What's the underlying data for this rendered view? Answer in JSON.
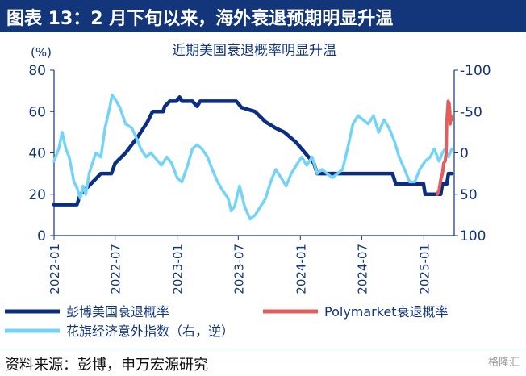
{
  "figure": {
    "title": "图表 13：2 月下旬以来，海外衰退预期明显升温",
    "source": "资料来源：彭博，申万宏源研究",
    "watermark": "格隆汇"
  },
  "colors": {
    "header_bg": "#13357a",
    "axis": "#13357a",
    "recession": "#0b2e83",
    "polymarket": "#e35d5d",
    "surprise": "#73d4f8"
  },
  "chart_data": {
    "type": "line",
    "title": "近期美国衰退概率明显升温",
    "y_unit": "(%)",
    "x_ticks": [
      "2022-01",
      "2022-07",
      "2023-01",
      "2023-07",
      "2024-01",
      "2024-07",
      "2025-01"
    ],
    "x_range": [
      "2022-01-01",
      "2025-04-01"
    ],
    "y_left": {
      "range": [
        0,
        80
      ],
      "ticks": [
        0,
        20,
        40,
        60,
        80
      ]
    },
    "y_right": {
      "range": [
        100,
        -100
      ],
      "inverted": true,
      "ticks": [
        "-100",
        "-50",
        "0",
        "50",
        "100"
      ]
    },
    "legend": [
      {
        "label": "彭博美国衰退概率",
        "series": "recession"
      },
      {
        "label": "Polymarket衰退概率",
        "series": "polymarket"
      },
      {
        "label": "花旗经济意外指数（右，逆）",
        "series": "surprise"
      }
    ],
    "series": [
      {
        "id": "recession",
        "name": "彭博美国衰退概率",
        "axis": "left",
        "points": [
          [
            "2022-01-01",
            15
          ],
          [
            "2022-03-10",
            15
          ],
          [
            "2022-03-20",
            20
          ],
          [
            "2022-04-20",
            25
          ],
          [
            "2022-05-20",
            30
          ],
          [
            "2022-06-20",
            30
          ],
          [
            "2022-07-01",
            35
          ],
          [
            "2022-08-01",
            40
          ],
          [
            "2022-09-05",
            47.5
          ],
          [
            "2022-10-05",
            55
          ],
          [
            "2022-10-20",
            60
          ],
          [
            "2022-11-20",
            60
          ],
          [
            "2022-11-25",
            62.5
          ],
          [
            "2022-12-10",
            65
          ],
          [
            "2022-12-30",
            65
          ],
          [
            "2023-01-08",
            67
          ],
          [
            "2023-01-15",
            65
          ],
          [
            "2023-02-15",
            65
          ],
          [
            "2023-03-01",
            62.5
          ],
          [
            "2023-03-10",
            65
          ],
          [
            "2023-06-25",
            65
          ],
          [
            "2023-07-01",
            64
          ],
          [
            "2023-07-10",
            62
          ],
          [
            "2023-08-20",
            60
          ],
          [
            "2023-09-20",
            55
          ],
          [
            "2023-10-20",
            52
          ],
          [
            "2023-11-15",
            50
          ],
          [
            "2023-12-20",
            45
          ],
          [
            "2024-01-15",
            40
          ],
          [
            "2024-02-10",
            35
          ],
          [
            "2024-02-20",
            30
          ],
          [
            "2024-09-30",
            30
          ],
          [
            "2024-10-10",
            25
          ],
          [
            "2024-12-31",
            25
          ],
          [
            "2025-01-05",
            20
          ],
          [
            "2025-02-20",
            20
          ],
          [
            "2025-02-25",
            25
          ],
          [
            "2025-03-10",
            25
          ],
          [
            "2025-03-15",
            30
          ],
          [
            "2025-03-25",
            30
          ]
        ]
      },
      {
        "id": "surprise",
        "name": "花旗经济意外指数（右，逆）",
        "axis": "right",
        "points": [
          [
            "2022-01-01",
            10
          ],
          [
            "2022-01-15",
            -5
          ],
          [
            "2022-01-25",
            -25
          ],
          [
            "2022-02-05",
            -5
          ],
          [
            "2022-02-15",
            5
          ],
          [
            "2022-03-01",
            35
          ],
          [
            "2022-03-10",
            42
          ],
          [
            "2022-03-20",
            55
          ],
          [
            "2022-03-28",
            40
          ],
          [
            "2022-04-05",
            50
          ],
          [
            "2022-04-15",
            25
          ],
          [
            "2022-04-25",
            12
          ],
          [
            "2022-05-05",
            0
          ],
          [
            "2022-05-20",
            5
          ],
          [
            "2022-06-01",
            -30
          ],
          [
            "2022-06-15",
            -55
          ],
          [
            "2022-06-22",
            -70
          ],
          [
            "2022-07-01",
            -65
          ],
          [
            "2022-07-15",
            -55
          ],
          [
            "2022-08-01",
            -35
          ],
          [
            "2022-08-20",
            -30
          ],
          [
            "2022-09-05",
            -15
          ],
          [
            "2022-09-15",
            -5
          ],
          [
            "2022-10-01",
            5
          ],
          [
            "2022-10-15",
            0
          ],
          [
            "2022-11-01",
            8
          ],
          [
            "2022-11-15",
            15
          ],
          [
            "2022-12-01",
            5
          ],
          [
            "2022-12-15",
            12
          ],
          [
            "2023-01-01",
            30
          ],
          [
            "2023-01-15",
            35
          ],
          [
            "2023-02-01",
            15
          ],
          [
            "2023-02-15",
            -5
          ],
          [
            "2023-03-01",
            -10
          ],
          [
            "2023-03-15",
            -5
          ],
          [
            "2023-04-01",
            5
          ],
          [
            "2023-04-15",
            20
          ],
          [
            "2023-05-01",
            35
          ],
          [
            "2023-05-15",
            45
          ],
          [
            "2023-06-01",
            55
          ],
          [
            "2023-06-10",
            70
          ],
          [
            "2023-06-20",
            65
          ],
          [
            "2023-07-05",
            40
          ],
          [
            "2023-07-20",
            65
          ],
          [
            "2023-08-05",
            80
          ],
          [
            "2023-08-20",
            75
          ],
          [
            "2023-09-05",
            65
          ],
          [
            "2023-09-20",
            55
          ],
          [
            "2023-10-05",
            35
          ],
          [
            "2023-10-20",
            20
          ],
          [
            "2023-11-05",
            30
          ],
          [
            "2023-11-20",
            40
          ],
          [
            "2023-12-05",
            25
          ],
          [
            "2023-12-20",
            15
          ],
          [
            "2024-01-05",
            5
          ],
          [
            "2024-01-20",
            15
          ],
          [
            "2024-02-05",
            5
          ],
          [
            "2024-02-20",
            25
          ],
          [
            "2024-03-05",
            20
          ],
          [
            "2024-03-20",
            25
          ],
          [
            "2024-04-05",
            30
          ],
          [
            "2024-04-20",
            25
          ],
          [
            "2024-05-05",
            20
          ],
          [
            "2024-05-20",
            -5
          ],
          [
            "2024-06-05",
            -35
          ],
          [
            "2024-06-20",
            -45
          ],
          [
            "2024-07-05",
            -40
          ],
          [
            "2024-07-20",
            -35
          ],
          [
            "2024-08-05",
            -45
          ],
          [
            "2024-08-20",
            -25
          ],
          [
            "2024-09-05",
            -40
          ],
          [
            "2024-09-20",
            -30
          ],
          [
            "2024-10-05",
            -15
          ],
          [
            "2024-10-20",
            5
          ],
          [
            "2024-11-05",
            20
          ],
          [
            "2024-11-20",
            35
          ],
          [
            "2024-12-05",
            35
          ],
          [
            "2024-12-20",
            20
          ],
          [
            "2025-01-05",
            10
          ],
          [
            "2025-01-20",
            5
          ],
          [
            "2025-02-01",
            -5
          ],
          [
            "2025-02-15",
            10
          ],
          [
            "2025-02-25",
            0
          ],
          [
            "2025-03-05",
            -5
          ],
          [
            "2025-03-15",
            5
          ],
          [
            "2025-03-25",
            -5
          ]
        ]
      },
      {
        "id": "polymarket",
        "name": "Polymarket衰退概率",
        "axis": "left",
        "points": [
          [
            "2025-02-10",
            20
          ],
          [
            "2025-02-15",
            22
          ],
          [
            "2025-02-20",
            27
          ],
          [
            "2025-02-25",
            30
          ],
          [
            "2025-03-01",
            35
          ],
          [
            "2025-03-05",
            36
          ],
          [
            "2025-03-08",
            40
          ],
          [
            "2025-03-10",
            55
          ],
          [
            "2025-03-12",
            60
          ],
          [
            "2025-03-14",
            65
          ],
          [
            "2025-03-17",
            64
          ],
          [
            "2025-03-19",
            60
          ],
          [
            "2025-03-20",
            54
          ],
          [
            "2025-03-22",
            58
          ],
          [
            "2025-03-24",
            56
          ]
        ]
      }
    ]
  }
}
